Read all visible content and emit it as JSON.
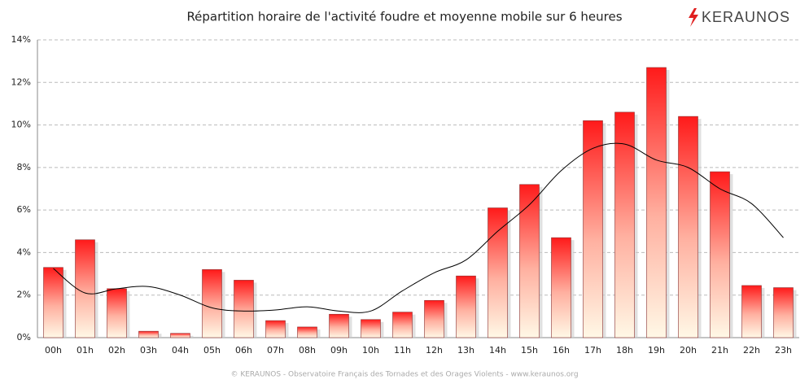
{
  "chart_data": {
    "type": "bar",
    "title": "Répartition horaire de l'activité foudre et moyenne mobile sur 6 heures",
    "logo": "KERAUNOS",
    "footer": "© KERAUNOS - Observatoire Français des Tornades et des Orages Violents - www.keraunos.org",
    "categories": [
      "00h",
      "01h",
      "02h",
      "03h",
      "04h",
      "05h",
      "06h",
      "07h",
      "08h",
      "09h",
      "10h",
      "11h",
      "12h",
      "13h",
      "14h",
      "15h",
      "16h",
      "17h",
      "18h",
      "19h",
      "20h",
      "21h",
      "22h",
      "23h"
    ],
    "series": [
      {
        "type": "bar",
        "color": "#ff1a1a",
        "values": [
          3.3,
          4.6,
          2.3,
          0.3,
          0.2,
          3.2,
          2.7,
          0.8,
          0.5,
          1.1,
          0.85,
          1.2,
          1.75,
          2.9,
          6.1,
          7.2,
          4.7,
          10.2,
          10.6,
          12.7,
          10.4,
          7.8,
          2.45,
          2.35
        ]
      },
      {
        "type": "line",
        "color": "#000000",
        "values": [
          3.25,
          2.1,
          2.3,
          2.4,
          2.0,
          1.4,
          1.25,
          1.3,
          1.45,
          1.25,
          1.25,
          2.2,
          3.05,
          3.65,
          5.0,
          6.25,
          7.85,
          8.9,
          9.1,
          8.35,
          8.0,
          7.0,
          6.3,
          4.7
        ]
      }
    ],
    "ylim": [
      0,
      14
    ],
    "yticks": [
      {
        "value": 0,
        "label": "0%"
      },
      {
        "value": 2,
        "label": "2%"
      },
      {
        "value": 4,
        "label": "4%"
      },
      {
        "value": 6,
        "label": "6%"
      },
      {
        "value": 8,
        "label": "8%"
      },
      {
        "value": 10,
        "label": "10%"
      },
      {
        "value": 12,
        "label": "12%"
      },
      {
        "value": 14,
        "label": "14%"
      }
    ],
    "grid": true
  }
}
